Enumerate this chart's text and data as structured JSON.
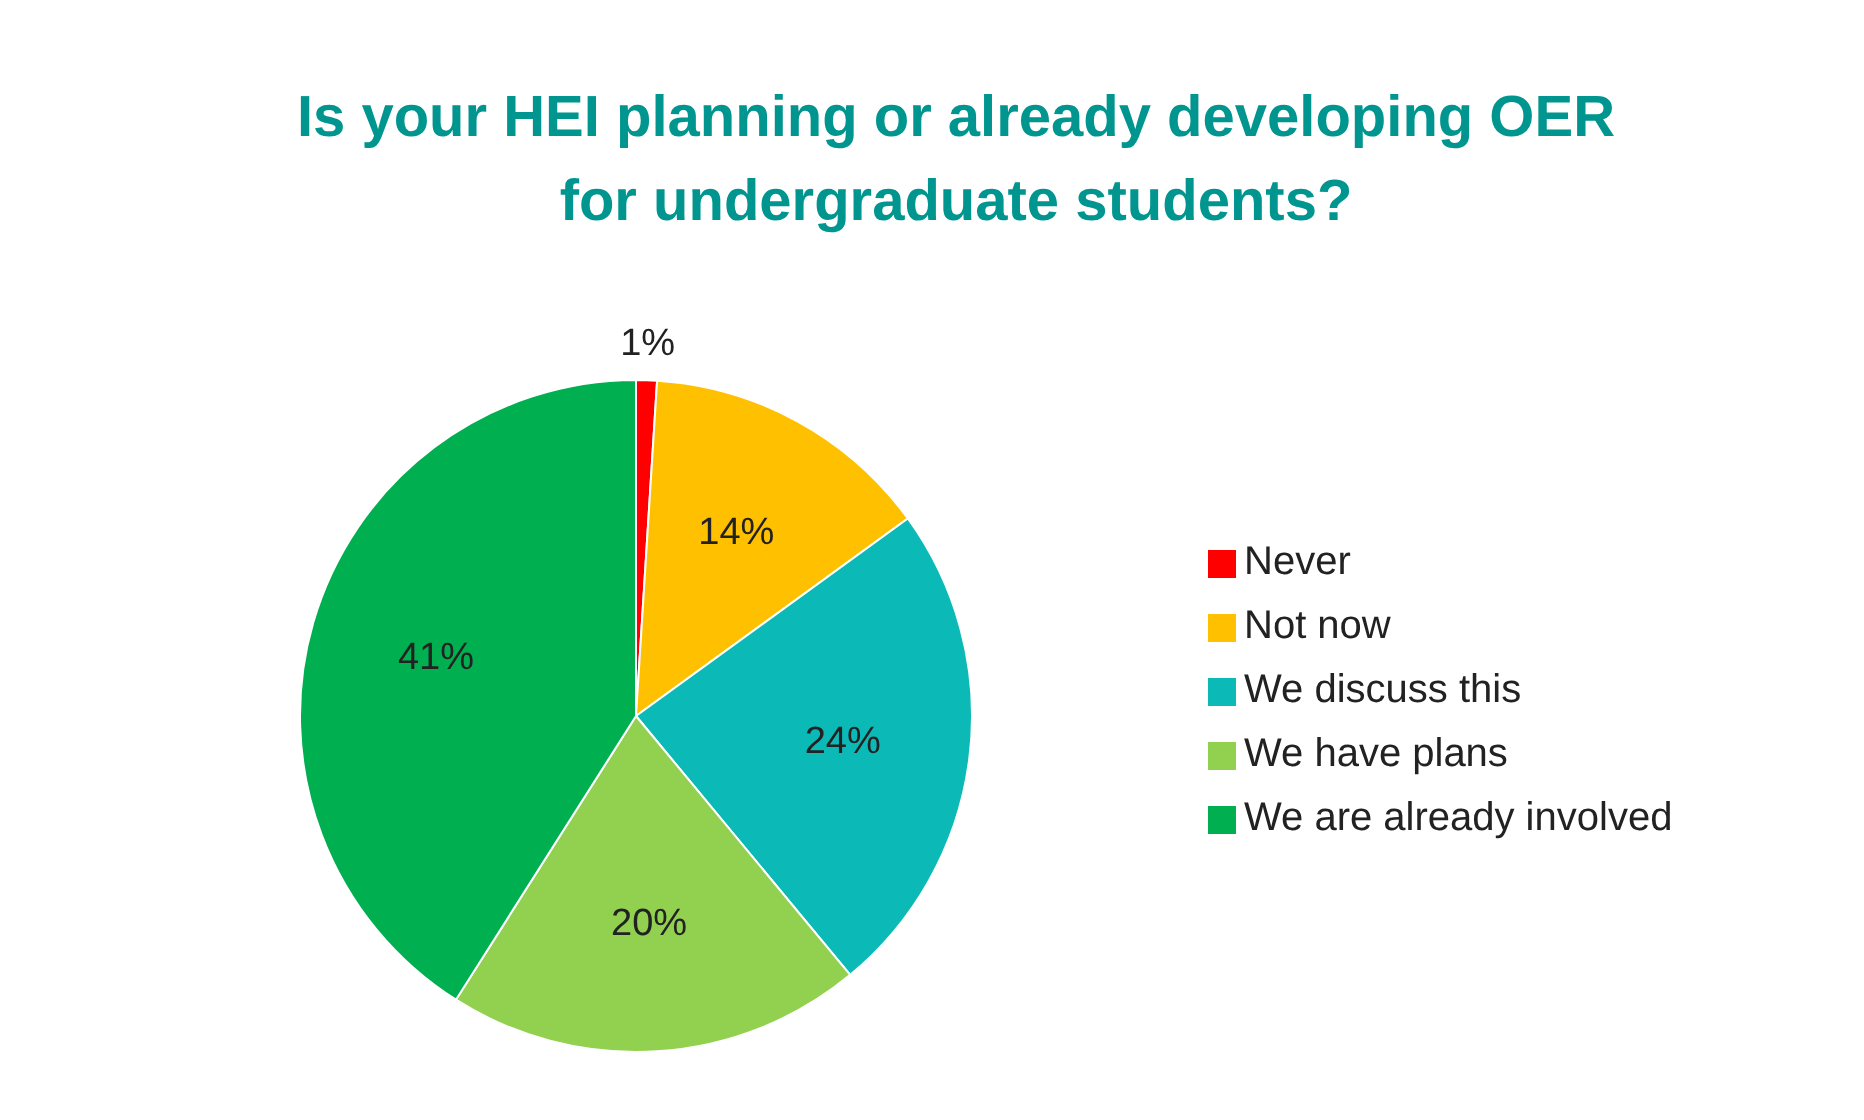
{
  "chart_data": {
    "type": "pie",
    "title": "Is your HEI planning or already developing OER for undergraduate students?",
    "categories": [
      "Never",
      "Not now",
      "We discuss this",
      "We have plans",
      "We are already involved"
    ],
    "values": [
      1,
      14,
      24,
      20,
      41
    ],
    "colors": [
      "#ff0000",
      "#ffc000",
      "#0bbab7",
      "#92d050",
      "#00b050"
    ],
    "value_labels": [
      "1%",
      "14%",
      "24%",
      "20%",
      "41%"
    ],
    "legend": "right"
  }
}
